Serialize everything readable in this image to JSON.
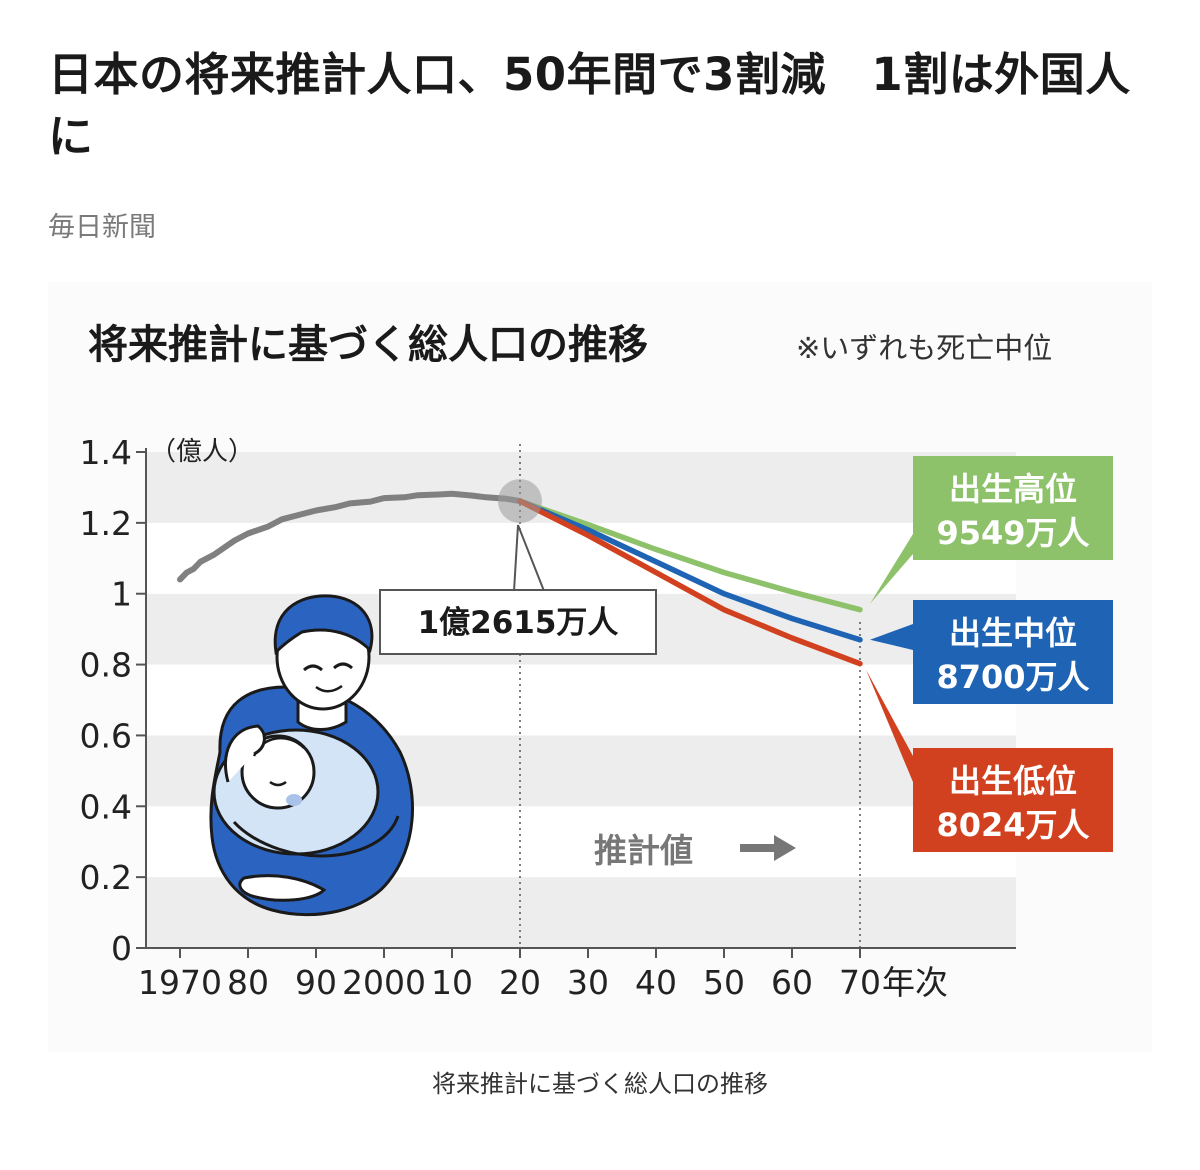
{
  "article": {
    "headline": "日本の将来推計人口、50年間で3割減　1割は外国人に",
    "source": "毎日新聞",
    "caption": "将来推計に基づく総人口の推移"
  },
  "chart_data": {
    "type": "line",
    "title": "将来推計に基づく総人口の推移",
    "note": "※いずれも死亡中位",
    "ylabel": "（億人）",
    "xlabel": "年次",
    "ylim": [
      0,
      1.4
    ],
    "y_ticks": [
      "0",
      "0.2",
      "0.4",
      "0.6",
      "0.8",
      "1",
      "1.2",
      "1.4"
    ],
    "x_ticks": [
      "1970",
      "80",
      "90",
      "2000",
      "10",
      "20",
      "30",
      "40",
      "50",
      "60",
      "70"
    ],
    "grid": "alternating horizontal bands",
    "estimate_label": "推計値",
    "callout": "1億2615万人",
    "series": [
      {
        "name": "",
        "color": "#808080",
        "x": [
          1970,
          1971,
          1972,
          1973,
          1975,
          1978,
          1980,
          1983,
          1985,
          1988,
          1990,
          1993,
          1995,
          1998,
          2000,
          2003,
          2005,
          2008,
          2010,
          2013,
          2015,
          2018,
          2020
        ],
        "y": [
          1.04,
          1.06,
          1.07,
          1.09,
          1.11,
          1.15,
          1.17,
          1.19,
          1.21,
          1.225,
          1.235,
          1.245,
          1.255,
          1.26,
          1.27,
          1.272,
          1.278,
          1.28,
          1.282,
          1.277,
          1.272,
          1.268,
          1.2615
        ]
      },
      {
        "name": "出生高位",
        "value_label": "9549万人",
        "color": "#8dc26b",
        "x": [
          2020,
          2030,
          2040,
          2050,
          2060,
          2070
        ],
        "y": [
          1.2615,
          1.195,
          1.125,
          1.06,
          1.005,
          0.9549
        ]
      },
      {
        "name": "出生中位",
        "value_label": "8700万人",
        "color": "#1f63b4",
        "x": [
          2020,
          2030,
          2040,
          2050,
          2060,
          2070
        ],
        "y": [
          1.2615,
          1.18,
          1.09,
          1.0,
          0.93,
          0.87
        ]
      },
      {
        "name": "出生低位",
        "value_label": "8024万人",
        "color": "#d2411f",
        "x": [
          2020,
          2030,
          2040,
          2050,
          2060,
          2070
        ],
        "y": [
          1.2615,
          1.165,
          1.06,
          0.955,
          0.875,
          0.8024
        ]
      }
    ]
  }
}
